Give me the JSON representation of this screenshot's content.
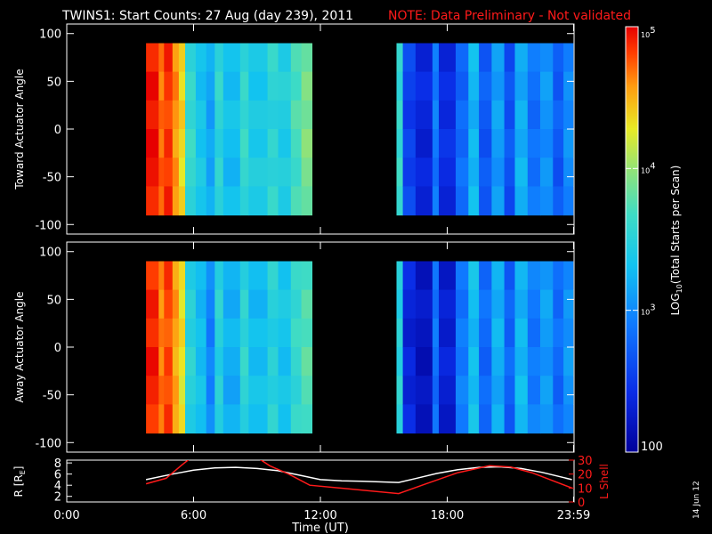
{
  "header": {
    "title": "TWINS1: Start Counts: 27 Aug (day 239), 2011",
    "note": "NOTE: Data Preliminary - Not validated"
  },
  "side_date": "14 Jun 12",
  "colors": {
    "background": "#000000",
    "axis": "#ffffff",
    "note": "#ff1a1a",
    "lshell": "#ff1a1a",
    "radius": "#ffffff"
  },
  "chart_data": [
    {
      "type": "heatmap",
      "name": "toward-panel",
      "ylabel": "Toward Actuator Angle",
      "ylim": [
        -110,
        110
      ],
      "yticks": [
        100,
        50,
        0,
        -50,
        -100
      ],
      "ytick_labels": [
        "100",
        "50",
        "0",
        "-50",
        "-100"
      ],
      "xlim": [
        0,
        24
      ],
      "angle_range": [
        -90,
        90
      ],
      "data_intervals": [
        [
          3.75,
          11.6
        ],
        [
          15.6,
          23.95
        ]
      ],
      "columns": [
        {
          "t": [
            3.75,
            4.35
          ],
          "log": 4.95
        },
        {
          "t": [
            4.35,
            4.6
          ],
          "log": 4.7
        },
        {
          "t": [
            4.6,
            5.0
          ],
          "log": 4.85
        },
        {
          "t": [
            5.0,
            5.3
          ],
          "log": 4.6
        },
        {
          "t": [
            5.3,
            5.6
          ],
          "log": 4.35
        },
        {
          "t": [
            5.6,
            6.1
          ],
          "log": 3.6
        },
        {
          "t": [
            6.1,
            6.6
          ],
          "log": 3.35
        },
        {
          "t": [
            6.6,
            7.0
          ],
          "log": 3.15
        },
        {
          "t": [
            7.0,
            7.4
          ],
          "log": 3.55
        },
        {
          "t": [
            7.4,
            8.2
          ],
          "log": 3.3
        },
        {
          "t": [
            8.2,
            8.6
          ],
          "log": 3.6
        },
        {
          "t": [
            8.6,
            9.5
          ],
          "log": 3.4
        },
        {
          "t": [
            9.5,
            10.0
          ],
          "log": 3.55
        },
        {
          "t": [
            10.0,
            10.6
          ],
          "log": 3.45
        },
        {
          "t": [
            10.6,
            11.1
          ],
          "log": 3.7
        },
        {
          "t": [
            11.1,
            11.6
          ],
          "log": 3.9
        },
        {
          "t": [
            15.6,
            15.9
          ],
          "log": 3.6
        },
        {
          "t": [
            15.9,
            16.5
          ],
          "log": 2.55
        },
        {
          "t": [
            16.5,
            17.3
          ],
          "log": 2.35
        },
        {
          "t": [
            17.3,
            17.6
          ],
          "log": 2.9
        },
        {
          "t": [
            17.6,
            18.4
          ],
          "log": 2.4
        },
        {
          "t": [
            18.4,
            19.0
          ],
          "log": 2.8
        },
        {
          "t": [
            19.0,
            19.5
          ],
          "log": 3.25
        },
        {
          "t": [
            19.5,
            20.1
          ],
          "log": 2.7
        },
        {
          "t": [
            20.1,
            20.7
          ],
          "log": 3.1
        },
        {
          "t": [
            20.7,
            21.2
          ],
          "log": 2.65
        },
        {
          "t": [
            21.2,
            21.8
          ],
          "log": 3.2
        },
        {
          "t": [
            21.8,
            22.4
          ],
          "log": 2.85
        },
        {
          "t": [
            22.4,
            23.0
          ],
          "log": 3.05
        },
        {
          "t": [
            23.0,
            23.5
          ],
          "log": 2.7
        },
        {
          "t": [
            23.5,
            23.95
          ],
          "log": 3.0
        }
      ]
    },
    {
      "type": "heatmap",
      "name": "away-panel",
      "ylabel": "Away Actuator Angle",
      "ylim": [
        -110,
        110
      ],
      "yticks": [
        100,
        50,
        0,
        -50,
        -100
      ],
      "ytick_labels": [
        "100",
        "50",
        "0",
        "-50",
        "-100"
      ],
      "xlim": [
        0,
        24
      ],
      "angle_range": [
        -90,
        90
      ],
      "data_intervals": [
        [
          3.75,
          11.6
        ],
        [
          15.6,
          23.95
        ]
      ],
      "columns": [
        {
          "t": [
            3.75,
            4.35
          ],
          "log": 4.9
        },
        {
          "t": [
            4.35,
            4.6
          ],
          "log": 4.65
        },
        {
          "t": [
            4.6,
            5.0
          ],
          "log": 4.8
        },
        {
          "t": [
            5.0,
            5.3
          ],
          "log": 4.55
        },
        {
          "t": [
            5.3,
            5.6
          ],
          "log": 4.3
        },
        {
          "t": [
            5.6,
            6.1
          ],
          "log": 3.5
        },
        {
          "t": [
            6.1,
            6.6
          ],
          "log": 3.3
        },
        {
          "t": [
            6.6,
            7.0
          ],
          "log": 2.95
        },
        {
          "t": [
            7.0,
            7.4
          ],
          "log": 3.5
        },
        {
          "t": [
            7.4,
            8.2
          ],
          "log": 3.2
        },
        {
          "t": [
            8.2,
            8.6
          ],
          "log": 3.55
        },
        {
          "t": [
            8.6,
            9.5
          ],
          "log": 3.3
        },
        {
          "t": [
            9.5,
            10.0
          ],
          "log": 3.5
        },
        {
          "t": [
            10.0,
            10.6
          ],
          "log": 3.35
        },
        {
          "t": [
            10.6,
            11.1
          ],
          "log": 3.6
        },
        {
          "t": [
            11.1,
            11.6
          ],
          "log": 3.75
        },
        {
          "t": [
            15.6,
            15.9
          ],
          "log": 3.5
        },
        {
          "t": [
            15.9,
            16.5
          ],
          "log": 2.35
        },
        {
          "t": [
            16.5,
            17.3
          ],
          "log": 2.2
        },
        {
          "t": [
            17.3,
            17.6
          ],
          "log": 2.85
        },
        {
          "t": [
            17.6,
            18.4
          ],
          "log": 2.3
        },
        {
          "t": [
            18.4,
            19.0
          ],
          "log": 2.9
        },
        {
          "t": [
            19.0,
            19.5
          ],
          "log": 3.3
        },
        {
          "t": [
            19.5,
            20.1
          ],
          "log": 2.8
        },
        {
          "t": [
            20.1,
            20.7
          ],
          "log": 3.2
        },
        {
          "t": [
            20.7,
            21.2
          ],
          "log": 2.75
        },
        {
          "t": [
            21.2,
            21.8
          ],
          "log": 3.25
        },
        {
          "t": [
            21.8,
            22.4
          ],
          "log": 2.9
        },
        {
          "t": [
            22.4,
            23.0
          ],
          "log": 3.1
        },
        {
          "t": [
            23.0,
            23.5
          ],
          "log": 2.8
        },
        {
          "t": [
            23.5,
            23.95
          ],
          "log": 3.05
        }
      ]
    },
    {
      "type": "line",
      "name": "orbit-panel",
      "xlabel": "Time (UT)",
      "xlim": [
        0,
        24
      ],
      "xticks": [
        0,
        6,
        12,
        18,
        23.98
      ],
      "xtick_labels": [
        "0:00",
        "6:00",
        "12:00",
        "18:00",
        "23:59"
      ],
      "ylabel_left": "R [R",
      "ylabel_left_sub": "E",
      "ylabel_left_end": "]",
      "ylim_left": [
        1,
        8.5
      ],
      "yticks_left": [
        8,
        6,
        4,
        2
      ],
      "ytick_labels_left": [
        "8",
        "6",
        "4",
        "2"
      ],
      "ylabel_right": "L Shell",
      "ylim_right": [
        0,
        30
      ],
      "yticks_right": [
        30,
        20,
        10,
        0
      ],
      "ytick_labels_right": [
        "30",
        "20",
        "10",
        "0"
      ],
      "series": [
        {
          "axis": "left",
          "x": [
            3.75,
            5,
            6,
            7,
            8,
            9,
            10,
            11,
            12,
            13,
            14,
            15.7,
            16.5,
            17.5,
            18.5,
            19.5,
            20.5,
            21.5,
            22.5,
            23.9
          ],
          "y": [
            5.0,
            6.0,
            6.7,
            7.1,
            7.2,
            7.0,
            6.6,
            5.8,
            5.0,
            4.8,
            4.7,
            4.5,
            5.2,
            6.1,
            6.8,
            7.2,
            7.3,
            7.0,
            6.3,
            5.0
          ]
        },
        {
          "axis": "right",
          "x": [
            3.75,
            4.7,
            5.4,
            5.9,
            9.0,
            9.6,
            10.5,
            11.5,
            15.7,
            17.0,
            18.5,
            20.0,
            21.0,
            22.0,
            23.9
          ],
          "y": [
            13,
            17,
            26,
            32,
            32,
            26,
            20,
            12,
            6,
            13,
            21,
            26,
            25,
            21,
            10
          ]
        }
      ]
    }
  ],
  "colorbar": {
    "label_pre": "LOG",
    "label_sub": "10",
    "label_post": "(Total Starts per Scan)",
    "range_log": [
      2,
      5
    ],
    "ticks": [
      {
        "log": 5,
        "base": "10",
        "exp": "5",
        "text": ""
      },
      {
        "log": 4,
        "base": "10",
        "exp": "4",
        "text": ""
      },
      {
        "log": 3,
        "base": "10",
        "exp": "3",
        "text": ""
      },
      {
        "log": 2,
        "base": "",
        "exp": "",
        "text": "100"
      }
    ]
  }
}
